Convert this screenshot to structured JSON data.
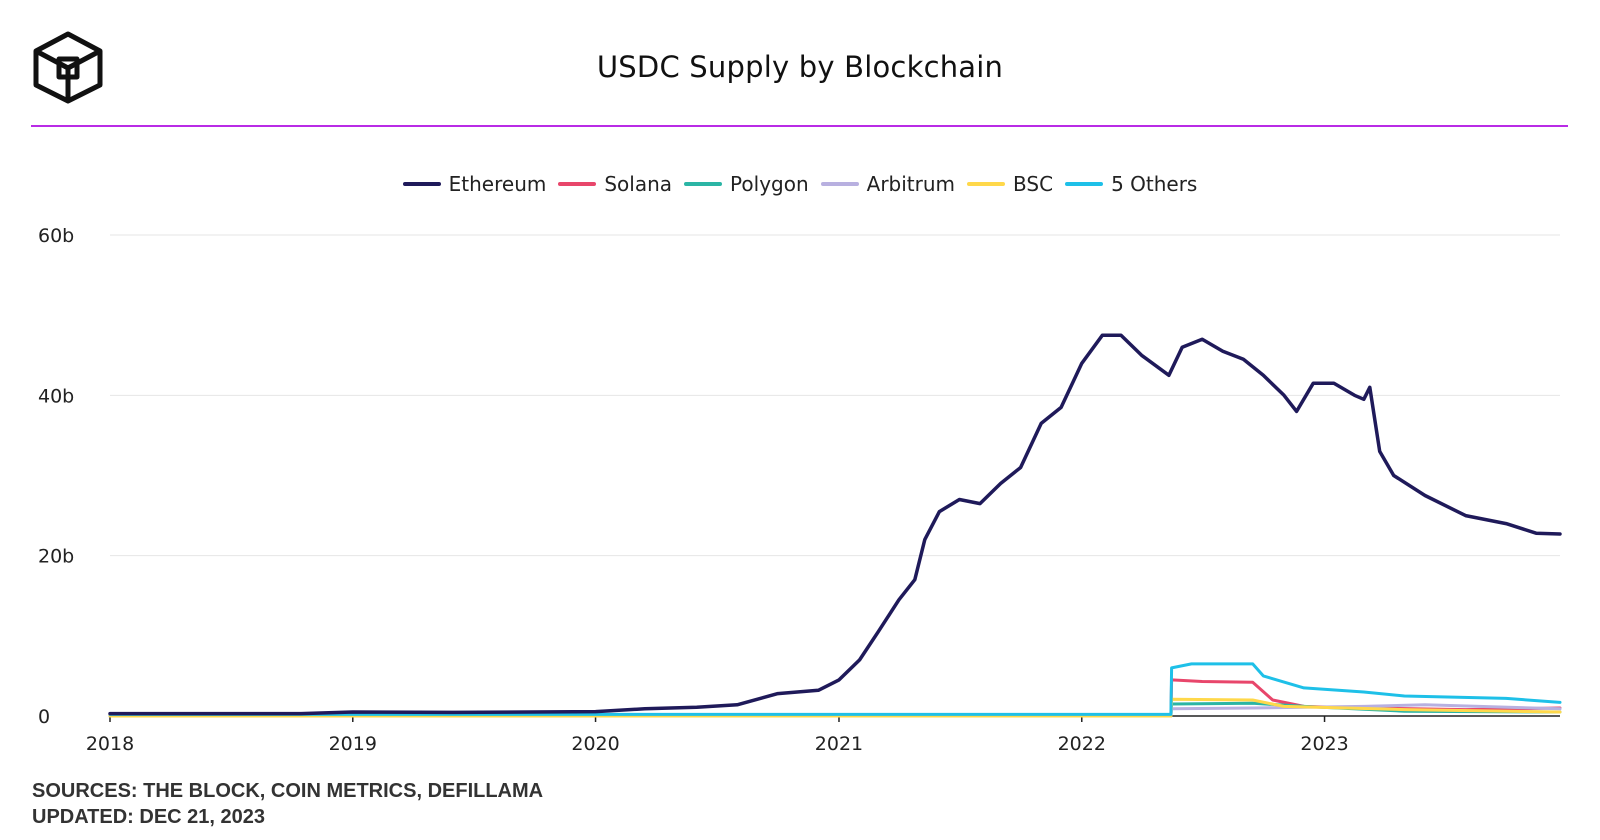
{
  "header": {
    "title": "USDC Supply by Blockchain"
  },
  "footer": {
    "sources": "SOURCES: THE BLOCK, COIN METRICS, DEFILLAMA",
    "updated": "UPDATED: DEC 21, 2023"
  },
  "colors": {
    "accent_rule": "#b92be6",
    "grid": "#e6e6e6"
  },
  "chart_data": {
    "type": "line",
    "title": "USDC Supply by Blockchain",
    "xlabel": "",
    "ylabel": "",
    "legend_position": "top-center",
    "grid": true,
    "x_range": [
      "2018-01-01",
      "2023-12-21"
    ],
    "ylim": [
      0,
      60000000000
    ],
    "x_ticks": [
      "2018",
      "2019",
      "2020",
      "2021",
      "2022",
      "2023"
    ],
    "y_ticks": [
      {
        "value": 0,
        "label": "0"
      },
      {
        "value": 20000000000,
        "label": "20b"
      },
      {
        "value": 40000000000,
        "label": "40b"
      },
      {
        "value": 60000000000,
        "label": "60b"
      }
    ],
    "series": [
      {
        "name": "Ethereum",
        "color": "#1f1a5a",
        "points": [
          [
            "2018-01-01",
            300000000
          ],
          [
            "2018-10-15",
            300000000
          ],
          [
            "2019-01-01",
            500000000
          ],
          [
            "2019-06-01",
            450000000
          ],
          [
            "2020-01-01",
            550000000
          ],
          [
            "2020-03-15",
            900000000
          ],
          [
            "2020-06-01",
            1100000000
          ],
          [
            "2020-08-01",
            1400000000
          ],
          [
            "2020-10-01",
            2800000000
          ],
          [
            "2020-12-01",
            3200000000
          ],
          [
            "2021-01-01",
            4500000000
          ],
          [
            "2021-02-01",
            7000000000
          ],
          [
            "2021-03-01",
            10500000000
          ],
          [
            "2021-04-01",
            14500000000
          ],
          [
            "2021-04-25",
            17000000000
          ],
          [
            "2021-05-10",
            22000000000
          ],
          [
            "2021-06-01",
            25500000000
          ],
          [
            "2021-07-01",
            27000000000
          ],
          [
            "2021-08-01",
            26500000000
          ],
          [
            "2021-09-01",
            29000000000
          ],
          [
            "2021-10-01",
            31000000000
          ],
          [
            "2021-11-01",
            36500000000
          ],
          [
            "2021-12-01",
            38500000000
          ],
          [
            "2022-01-01",
            44000000000
          ],
          [
            "2022-02-01",
            47500000000
          ],
          [
            "2022-03-01",
            47500000000
          ],
          [
            "2022-04-01",
            45000000000
          ],
          [
            "2022-05-12",
            42500000000
          ],
          [
            "2022-06-01",
            46000000000
          ],
          [
            "2022-07-01",
            47000000000
          ],
          [
            "2022-08-01",
            45500000000
          ],
          [
            "2022-09-01",
            44500000000
          ],
          [
            "2022-10-01",
            42500000000
          ],
          [
            "2022-11-01",
            40000000000
          ],
          [
            "2022-11-20",
            38000000000
          ],
          [
            "2022-12-15",
            41500000000
          ],
          [
            "2023-01-15",
            41500000000
          ],
          [
            "2023-02-15",
            40000000000
          ],
          [
            "2023-03-01",
            39500000000
          ],
          [
            "2023-03-10",
            41000000000
          ],
          [
            "2023-03-25",
            33000000000
          ],
          [
            "2023-04-15",
            30000000000
          ],
          [
            "2023-06-01",
            27500000000
          ],
          [
            "2023-08-01",
            25000000000
          ],
          [
            "2023-10-01",
            24000000000
          ],
          [
            "2023-11-15",
            22800000000
          ],
          [
            "2023-12-21",
            22700000000
          ]
        ]
      },
      {
        "name": "Solana",
        "color": "#e8466b",
        "points": [
          [
            "2018-01-01",
            0
          ],
          [
            "2022-05-15",
            0
          ],
          [
            "2022-05-16",
            4500000000
          ],
          [
            "2022-07-01",
            4300000000
          ],
          [
            "2022-09-15",
            4200000000
          ],
          [
            "2022-10-15",
            2000000000
          ],
          [
            "2022-12-01",
            1200000000
          ],
          [
            "2023-03-01",
            1000000000
          ],
          [
            "2023-08-01",
            800000000
          ],
          [
            "2023-12-21",
            1000000000
          ]
        ]
      },
      {
        "name": "Polygon",
        "color": "#2bb5a5",
        "points": [
          [
            "2018-01-01",
            0
          ],
          [
            "2022-05-15",
            0
          ],
          [
            "2022-05-16",
            1500000000
          ],
          [
            "2022-09-15",
            1600000000
          ],
          [
            "2022-12-01",
            1200000000
          ],
          [
            "2023-05-01",
            600000000
          ],
          [
            "2023-12-21",
            500000000
          ]
        ]
      },
      {
        "name": "Arbitrum",
        "color": "#b8b0e0",
        "points": [
          [
            "2018-01-01",
            0
          ],
          [
            "2022-05-15",
            0
          ],
          [
            "2022-05-16",
            900000000
          ],
          [
            "2022-09-15",
            1000000000
          ],
          [
            "2023-03-01",
            1200000000
          ],
          [
            "2023-06-01",
            1400000000
          ],
          [
            "2023-12-21",
            900000000
          ]
        ]
      },
      {
        "name": "BSC",
        "color": "#ffd84a",
        "points": [
          [
            "2018-01-01",
            0
          ],
          [
            "2022-05-15",
            0
          ],
          [
            "2022-05-16",
            2100000000
          ],
          [
            "2022-09-15",
            2000000000
          ],
          [
            "2022-11-01",
            1200000000
          ],
          [
            "2023-05-01",
            800000000
          ],
          [
            "2023-12-21",
            500000000
          ]
        ]
      },
      {
        "name": "5 Others",
        "color": "#1ec0e8",
        "points": [
          [
            "2018-01-01",
            200000000
          ],
          [
            "2022-05-15",
            200000000
          ],
          [
            "2022-05-16",
            6000000000
          ],
          [
            "2022-06-15",
            6500000000
          ],
          [
            "2022-09-15",
            6500000000
          ],
          [
            "2022-10-01",
            5000000000
          ],
          [
            "2022-12-01",
            3500000000
          ],
          [
            "2023-03-01",
            3000000000
          ],
          [
            "2023-05-01",
            2500000000
          ],
          [
            "2023-10-01",
            2200000000
          ],
          [
            "2023-12-21",
            1700000000
          ]
        ]
      }
    ]
  }
}
